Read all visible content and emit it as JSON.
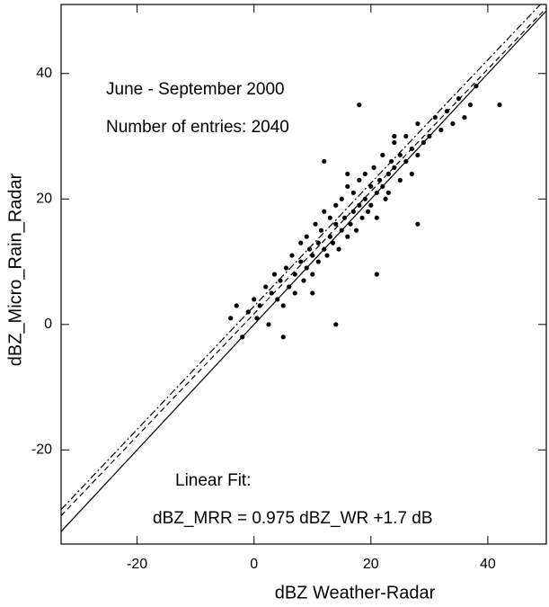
{
  "chart_data": {
    "type": "scatter",
    "x_label": "dBZ  Weather-Radar",
    "y_label": "dBZ_Micro_Rain_Radar",
    "annotations": [
      "June - September 2000",
      "Number of entries: 2040",
      "Linear Fit:",
      "dBZ_MRR = 0.975 dBZ_WR +1.7 dB"
    ],
    "color": "#000000",
    "x": [
      -4,
      -3,
      -2,
      -1,
      0,
      0.5,
      1,
      2,
      2.5,
      3,
      3.5,
      4,
      4.5,
      5,
      5.5,
      6,
      6.5,
      7,
      7,
      8,
      8,
      8.5,
      9,
      9,
      9.5,
      10,
      10,
      10.5,
      11,
      11,
      11.5,
      12,
      12,
      12.5,
      13,
      13,
      13.5,
      14,
      14,
      14.5,
      15,
      15,
      15.5,
      16,
      16,
      16.5,
      17,
      17,
      17.5,
      18,
      18,
      18.5,
      19,
      19,
      19.5,
      20,
      20,
      20.5,
      21,
      21,
      21.5,
      22,
      22,
      22.5,
      23,
      23,
      23.5,
      24,
      24,
      25,
      25,
      26,
      26,
      27,
      27,
      28,
      28,
      29,
      30,
      31,
      32,
      33,
      34,
      35,
      36,
      37,
      38,
      42,
      16,
      21,
      14,
      10,
      24,
      5,
      28,
      18,
      12
    ],
    "values": [
      1,
      3,
      -2,
      2,
      4,
      1,
      3,
      6,
      0,
      5,
      8,
      4,
      7,
      3,
      9,
      6,
      11,
      8,
      5,
      10,
      13,
      7,
      9,
      14,
      12,
      11,
      8,
      16,
      10,
      13,
      15,
      12,
      18,
      11,
      14,
      17,
      13,
      16,
      19,
      12,
      15,
      20,
      17,
      14,
      22,
      16,
      18,
      21,
      15,
      19,
      23,
      17,
      20,
      24,
      18,
      22,
      19,
      25,
      21,
      17,
      23,
      22,
      27,
      20,
      24,
      21,
      26,
      25,
      29,
      23,
      27,
      26,
      30,
      28,
      24,
      32,
      27,
      29,
      30,
      33,
      31,
      34,
      32,
      36,
      33,
      35,
      38,
      35,
      24,
      8,
      0,
      5,
      30,
      -2,
      16,
      35,
      26
    ],
    "lines": [
      {
        "style": "solid",
        "x": [
          -33,
          50
        ],
        "values": [
          -33,
          50
        ]
      },
      {
        "style": "dashed",
        "x": [
          -33,
          50
        ],
        "values": [
          -30.475,
          50.45
        ]
      },
      {
        "style": "dashdot",
        "x": [
          -33,
          50
        ],
        "values": [
          -29.5,
          52
        ]
      }
    ],
    "xlim": [
      -33,
      50
    ],
    "ylim": [
      -35,
      51
    ],
    "xticks": [
      -20,
      0,
      20,
      40
    ],
    "yticks": [
      -20,
      0,
      20,
      40
    ]
  }
}
